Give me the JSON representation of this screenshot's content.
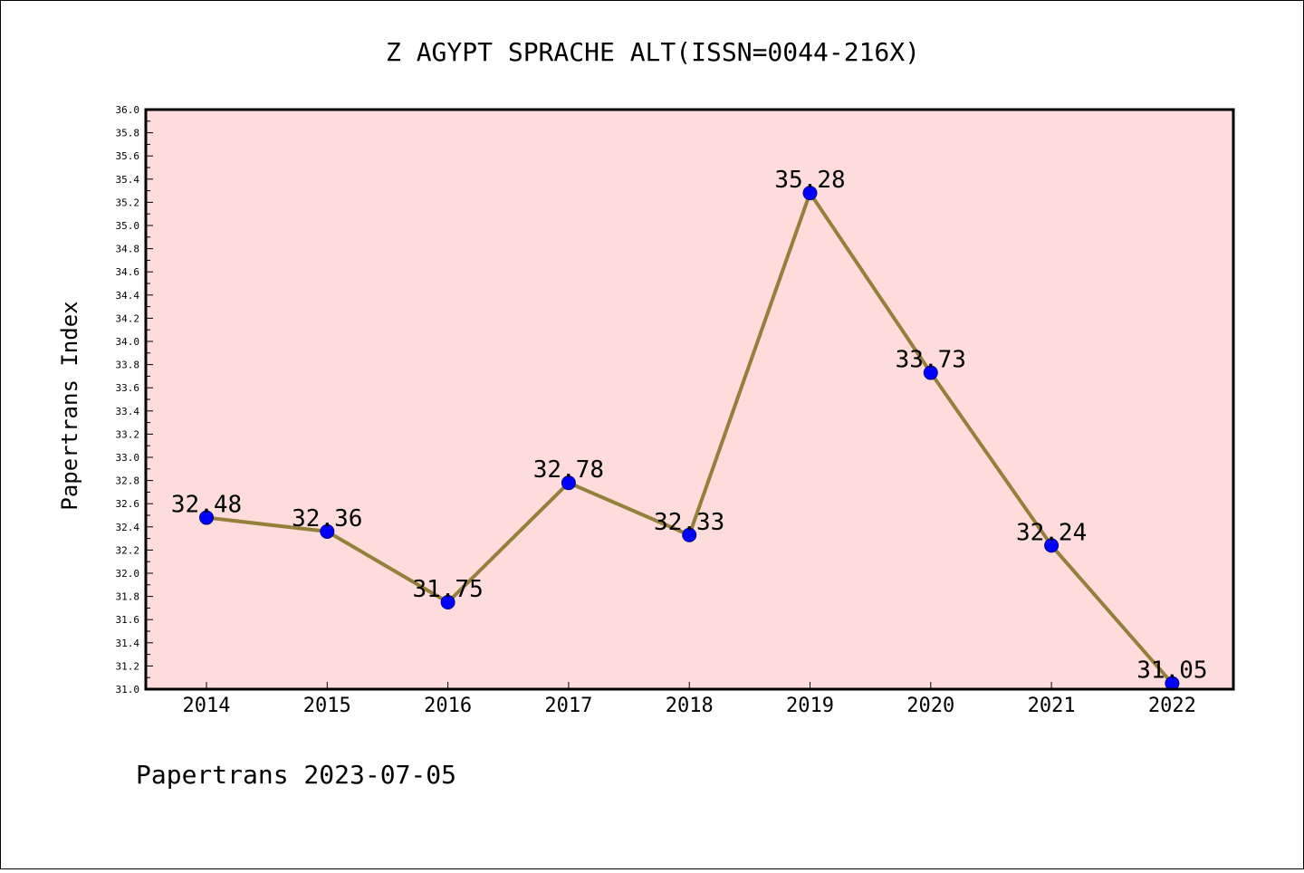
{
  "chart_data": {
    "type": "line",
    "title": "Z AGYPT SPRACHE ALT(ISSN=0044-216X)",
    "xlabel": "",
    "ylabel": "Papertrans Index",
    "x": [
      "2014",
      "2015",
      "2016",
      "2017",
      "2018",
      "2019",
      "2020",
      "2021",
      "2022"
    ],
    "series": [
      {
        "values": [
          32.48,
          32.36,
          31.75,
          32.78,
          32.33,
          35.28,
          33.73,
          32.24,
          31.05
        ]
      }
    ],
    "data_labels": [
      "32.48",
      "32.36",
      "31.75",
      "32.78",
      "32.33",
      "35.28",
      "33.73",
      "32.24",
      "31.05"
    ],
    "ylim": [
      31.0,
      36.0
    ],
    "yticks": [
      "31.0",
      "31.2",
      "31.4",
      "31.6",
      "31.8",
      "32.0",
      "32.2",
      "32.4",
      "32.6",
      "32.8",
      "33.0",
      "33.2",
      "33.4",
      "33.6",
      "33.8",
      "34.0",
      "34.2",
      "34.4",
      "34.6",
      "34.8",
      "35.0",
      "35.2",
      "35.4",
      "35.6",
      "35.8",
      "36.0"
    ],
    "grid": false,
    "legend": "none",
    "colors": {
      "plot_background": "#fddcdb",
      "line": "#94803b",
      "marker": "#0000ff"
    }
  },
  "footer": "Papertrans 2023-07-05"
}
